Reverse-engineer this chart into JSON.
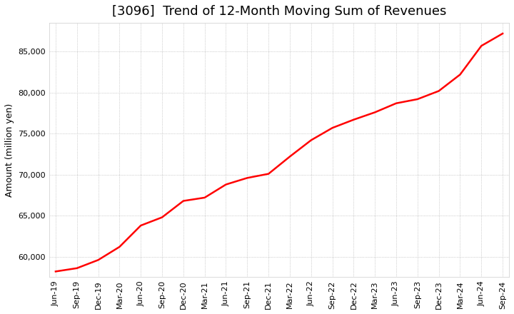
{
  "title": "[3096]  Trend of 12-Month Moving Sum of Revenues",
  "ylabel": "Amount (million yen)",
  "background_color": "#ffffff",
  "grid_color": "#aaaaaa",
  "line_color": "#ff0000",
  "x_labels": [
    "Jun-19",
    "Sep-19",
    "Dec-19",
    "Mar-20",
    "Jun-20",
    "Sep-20",
    "Dec-20",
    "Mar-21",
    "Jun-21",
    "Sep-21",
    "Dec-21",
    "Mar-22",
    "Jun-22",
    "Sep-22",
    "Dec-22",
    "Mar-23",
    "Jun-23",
    "Sep-23",
    "Dec-23",
    "Mar-24",
    "Jun-24",
    "Sep-24"
  ],
  "values": [
    58200,
    58600,
    59600,
    61200,
    63800,
    64800,
    66800,
    67200,
    68800,
    69600,
    70100,
    72200,
    74200,
    75700,
    76700,
    77600,
    78700,
    79200,
    80200,
    82200,
    85700,
    87200
  ],
  "ylim": [
    57500,
    88500
  ],
  "yticks": [
    60000,
    65000,
    70000,
    75000,
    80000,
    85000
  ],
  "title_fontsize": 13,
  "axis_fontsize": 8,
  "ylabel_fontsize": 9
}
